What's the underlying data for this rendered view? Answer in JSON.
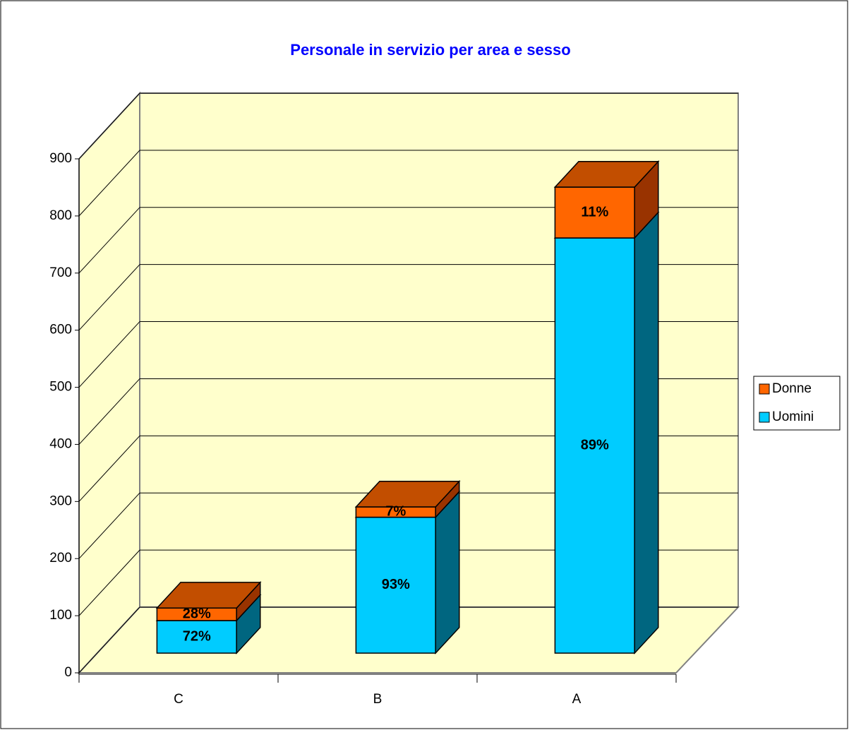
{
  "chart_data": {
    "type": "bar3d_stacked",
    "title": "Personale in servizio per area e sesso",
    "categories": [
      "C",
      "B",
      "A"
    ],
    "series": [
      {
        "name": "Uomini",
        "color": "#00ccff",
        "side_color": "#006680",
        "top_color": "#00a3cc",
        "values": [
          57,
          238,
          727
        ],
        "value_labels": [
          "72%",
          "93%",
          "89%"
        ]
      },
      {
        "name": "Donne",
        "color": "#ff6600",
        "side_color": "#993300",
        "top_color": "#c24e00",
        "values": [
          22,
          18,
          89
        ],
        "value_labels": [
          "28%",
          "7%",
          "11%"
        ]
      }
    ],
    "ylim": [
      0,
      900
    ],
    "yticks": [
      0,
      100,
      200,
      300,
      400,
      500,
      600,
      700,
      800,
      900
    ],
    "grid": true,
    "legend": "right",
    "wall_color": "#ffffcc",
    "title_color": "#0000ff"
  }
}
